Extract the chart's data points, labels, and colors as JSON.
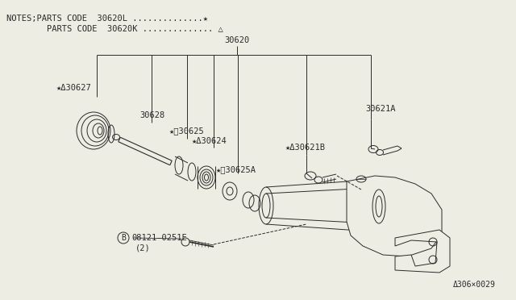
{
  "bg_color": "#eeede4",
  "line_color": "#2a2a2a",
  "notes_line1": "NOTES;PARTS CODE  30620L ..............★",
  "notes_line2": "        PARTS CODE  30620K .............. △",
  "watermark": "Δ306×0029",
  "font_size": 7.5
}
